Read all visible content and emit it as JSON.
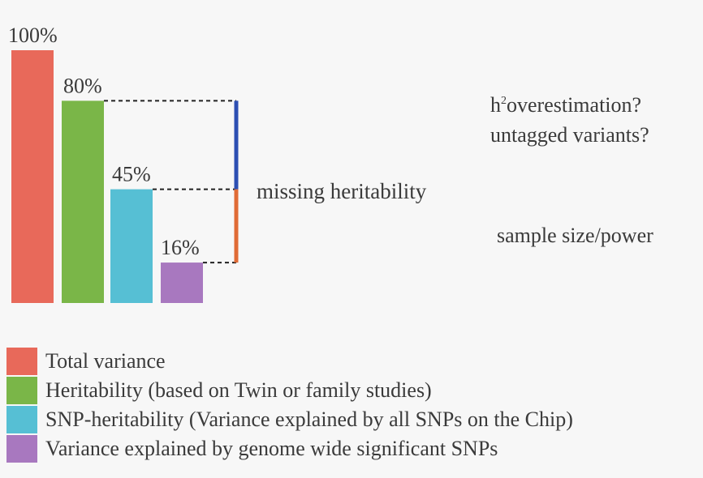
{
  "chart_data": {
    "type": "bar",
    "categories": [
      "Total variance",
      "Heritability",
      "SNP-heritability",
      "Genome-wide significant SNPs"
    ],
    "values": [
      100,
      80,
      45,
      16
    ],
    "value_labels": [
      "100%",
      "80%",
      "45%",
      "16%"
    ],
    "colors": [
      "#e8695a",
      "#7ab648",
      "#56bfd4",
      "#a878bf"
    ],
    "ylim": [
      0,
      100
    ],
    "grid": false,
    "bracket_colors": {
      "upper": "#2d4fb3",
      "lower": "#e06b36"
    }
  },
  "annotations": {
    "missing": "missing heritability",
    "reasons_upper_line1_h": "h",
    "reasons_upper_line1_sup": "2",
    "reasons_upper_line1_rest": "overestimation?",
    "reasons_upper_line2": "untagged variants?",
    "reasons_lower": "sample size/power"
  },
  "legend": [
    {
      "label": "Total variance",
      "color": "#e8695a"
    },
    {
      "label": "Heritability (based on Twin or family studies)",
      "color": "#7ab648"
    },
    {
      "label": "SNP-heritability (Variance explained by all SNPs on the Chip)",
      "color": "#56bfd4"
    },
    {
      "label": "Variance explained by genome wide significant SNPs",
      "color": "#a878bf"
    }
  ]
}
